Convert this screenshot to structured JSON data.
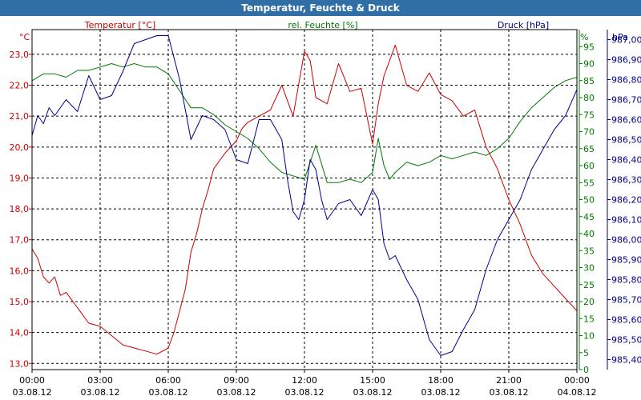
{
  "window": {
    "title": "Temperatur, Feuchte & Druck"
  },
  "chart_data": {
    "type": "line",
    "grid": true,
    "x_ticks": [
      {
        "time": "00:00",
        "date": "03.08.12"
      },
      {
        "time": "03:00",
        "date": "03.08.12"
      },
      {
        "time": "06:00",
        "date": "03.08.12"
      },
      {
        "time": "09:00",
        "date": "03.08.12"
      },
      {
        "time": "12:00",
        "date": "03.08.12"
      },
      {
        "time": "15:00",
        "date": "03.08.12"
      },
      {
        "time": "18:00",
        "date": "03.08.12"
      },
      {
        "time": "21:00",
        "date": "03.08.12"
      },
      {
        "time": "00:00",
        "date": "04.08.12"
      }
    ],
    "x_range_hours": [
      0,
      24
    ],
    "axes": {
      "temperature": {
        "label": "Temperatur [°C]",
        "unit": "°C",
        "color": "#cc0000",
        "ylim": [
          12.8,
          23.8
        ],
        "ticks": [
          "13,0",
          "14,0",
          "15,0",
          "16,0",
          "17,0",
          "18,0",
          "19,0",
          "20,0",
          "21,0",
          "22,0",
          "23,0"
        ]
      },
      "humidity": {
        "label": "rel. Feuchte [%]",
        "unit": "%",
        "color": "#007a00",
        "ylim": [
          0,
          100
        ],
        "ticks": [
          "0",
          "5",
          "10",
          "15",
          "20",
          "25",
          "30",
          "35",
          "40",
          "45",
          "50",
          "55",
          "60",
          "65",
          "70",
          "75",
          "80",
          "85",
          "90",
          "95"
        ]
      },
      "pressure": {
        "label": "Druck [hPa]",
        "unit": "hPa",
        "color": "#00008b",
        "ylim": [
          985.35,
          987.05
        ],
        "ticks": [
          "985,40",
          "985,50",
          "985,60",
          "985,70",
          "985,80",
          "985,90",
          "986,00",
          "986,10",
          "986,20",
          "986,30",
          "986,40",
          "986,50",
          "986,60",
          "986,70",
          "986,80",
          "986,90",
          "987,00"
        ]
      }
    },
    "series": [
      {
        "name": "Temperatur [°C]",
        "axis": "temperature",
        "color": "#cc0000",
        "x": [
          0,
          0.25,
          0.5,
          0.75,
          1,
          1.25,
          1.5,
          2,
          2.5,
          3,
          3.5,
          4,
          4.5,
          5,
          5.5,
          6,
          6.25,
          6.5,
          6.75,
          7,
          7.25,
          7.5,
          7.75,
          8,
          8.5,
          9,
          9.25,
          9.5,
          10,
          10.5,
          11,
          11.5,
          12,
          12.25,
          12.5,
          13,
          13.5,
          14,
          14.5,
          15,
          15.25,
          15.5,
          15.75,
          16,
          16.5,
          17,
          17.5,
          18,
          18.5,
          19,
          19.5,
          20,
          20.5,
          21,
          21.5,
          22,
          22.5,
          23,
          23.5,
          24
        ],
        "y": [
          16.7,
          16.4,
          15.8,
          15.6,
          15.8,
          15.2,
          15.3,
          14.8,
          14.3,
          14.2,
          13.9,
          13.6,
          13.5,
          13.4,
          13.3,
          13.5,
          14.0,
          14.7,
          15.4,
          16.6,
          17.2,
          18.0,
          18.6,
          19.3,
          19.8,
          20.2,
          20.6,
          20.8,
          21.0,
          21.2,
          22.0,
          21.0,
          23.1,
          22.8,
          21.6,
          21.4,
          22.7,
          21.8,
          21.9,
          20.1,
          21.4,
          22.3,
          22.8,
          23.3,
          22.0,
          21.8,
          22.4,
          21.7,
          21.5,
          21.0,
          21.2,
          20.0,
          19.3,
          18.3,
          17.5,
          16.5,
          15.9,
          15.5,
          15.1,
          14.7
        ]
      },
      {
        "name": "rel. Feuchte [%]",
        "axis": "humidity",
        "color": "#007a00",
        "x": [
          0,
          0.5,
          1,
          1.5,
          2,
          2.5,
          3,
          3.5,
          4,
          4.5,
          5,
          5.5,
          6,
          6.5,
          7,
          7.5,
          8,
          8.5,
          9,
          9.5,
          10,
          10.5,
          11,
          11.5,
          12,
          12.5,
          13,
          13.5,
          14,
          14.5,
          15,
          15.25,
          15.5,
          15.75,
          16,
          16.5,
          17,
          17.5,
          18,
          18.5,
          19,
          19.5,
          20,
          20.5,
          21,
          21.5,
          22,
          22.5,
          23,
          23.5,
          24
        ],
        "y": [
          85,
          87,
          87,
          86,
          88,
          88,
          89,
          90,
          89,
          90,
          89,
          89,
          87,
          82,
          77,
          77,
          75,
          72,
          70,
          68,
          65,
          61,
          58,
          57,
          56,
          66,
          55,
          55,
          56,
          55,
          58,
          68,
          60,
          56,
          58,
          61,
          60,
          61,
          63,
          62,
          63,
          64,
          63,
          65,
          68,
          73,
          77,
          80,
          83,
          85,
          86
        ]
      },
      {
        "name": "Druck [hPa]",
        "axis": "pressure",
        "color": "#00008b",
        "x": [
          0,
          0.25,
          0.5,
          0.75,
          1,
          1.5,
          2,
          2.5,
          3,
          3.5,
          4,
          4.5,
          5,
          5.5,
          6,
          6.5,
          7,
          7.5,
          8,
          8.5,
          9,
          9.5,
          10,
          10.5,
          11,
          11.25,
          11.5,
          11.75,
          12,
          12.25,
          12.5,
          12.75,
          13,
          13.5,
          14,
          14.5,
          15,
          15.25,
          15.5,
          15.75,
          16,
          16.5,
          17,
          17.5,
          18,
          18.5,
          19,
          19.5,
          20,
          20.5,
          21,
          21.5,
          22,
          22.5,
          23,
          23.5,
          24
        ],
        "y": [
          986.52,
          986.62,
          986.58,
          986.66,
          986.62,
          986.7,
          986.64,
          986.82,
          986.7,
          986.72,
          986.84,
          986.98,
          987.0,
          987.02,
          987.02,
          986.8,
          986.5,
          986.62,
          986.6,
          986.55,
          986.4,
          986.38,
          986.6,
          986.6,
          986.5,
          986.3,
          986.14,
          986.1,
          986.2,
          986.4,
          986.35,
          986.2,
          986.1,
          986.18,
          986.2,
          986.12,
          986.25,
          986.2,
          985.98,
          985.9,
          985.92,
          985.8,
          985.7,
          985.5,
          985.42,
          985.44,
          985.55,
          985.65,
          985.85,
          986.0,
          986.1,
          986.2,
          986.35,
          986.45,
          986.55,
          986.62,
          986.75
        ]
      }
    ]
  }
}
